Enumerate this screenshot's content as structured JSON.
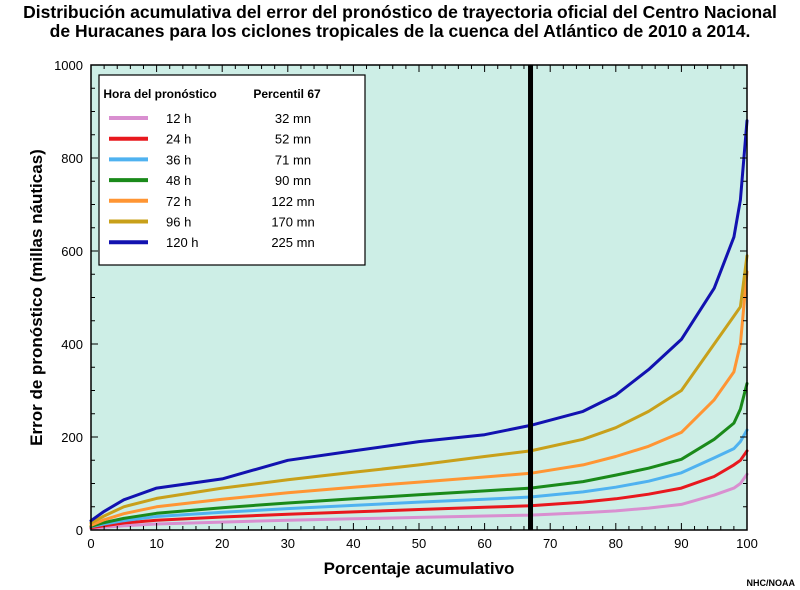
{
  "title": {
    "line1": "Distribución acumulativa del error del pronóstico de trayectoria oficial del Centro Nacional",
    "line2": "de Huracanes para los ciclones tropicales de la cuenca del Atlántico de 2010 a 2014."
  },
  "credit": "NHC/NOAA",
  "chart_data": {
    "type": "line",
    "xlabel": "Porcentaje acumulativo",
    "ylabel": "Error de pronóstico (millas náuticas)",
    "xlim": [
      0,
      100
    ],
    "ylim": [
      0,
      1000
    ],
    "xticks": [
      0,
      10,
      20,
      30,
      40,
      50,
      60,
      70,
      80,
      90,
      100
    ],
    "yticks": [
      0,
      200,
      400,
      600,
      800,
      1000
    ],
    "background": "#cdeee6",
    "grid": false,
    "reference_line_x": 67,
    "legend": {
      "placement": "top-left",
      "header_left": "Hora del pronóstico",
      "header_right": "Percentil 67"
    },
    "x": [
      0,
      2,
      5,
      10,
      20,
      30,
      40,
      50,
      60,
      67,
      75,
      80,
      85,
      90,
      95,
      98,
      99,
      100
    ],
    "series": [
      {
        "name": "12 h",
        "percentile67": "32 mn",
        "color": "#d98fd0",
        "values": [
          3,
          6,
          9,
          13,
          17,
          21,
          24,
          27,
          30,
          32,
          37,
          41,
          47,
          55,
          75,
          90,
          100,
          120
        ]
      },
      {
        "name": "24 h",
        "percentile67": "52 mn",
        "color": "#e8181e",
        "values": [
          5,
          9,
          15,
          21,
          28,
          34,
          39,
          44,
          49,
          52,
          60,
          67,
          77,
          90,
          115,
          140,
          150,
          170
        ]
      },
      {
        "name": "36 h",
        "percentile67": "71 mn",
        "color": "#4fb2f0",
        "values": [
          7,
          13,
          20,
          29,
          38,
          46,
          53,
          60,
          66,
          71,
          82,
          92,
          105,
          123,
          155,
          175,
          190,
          215
        ]
      },
      {
        "name": "48 h",
        "percentile67": "90 mn",
        "color": "#1a8a1a",
        "values": [
          8,
          16,
          25,
          36,
          48,
          58,
          67,
          76,
          84,
          90,
          104,
          118,
          133,
          152,
          195,
          230,
          260,
          315
        ]
      },
      {
        "name": "72 h",
        "percentile67": "122 mn",
        "color": "#ff9533",
        "values": [
          10,
          22,
          35,
          50,
          66,
          80,
          92,
          103,
          114,
          122,
          140,
          158,
          180,
          210,
          280,
          340,
          400,
          555
        ]
      },
      {
        "name": "96 h",
        "percentile67": "170 mn",
        "color": "#c8a01a",
        "values": [
          15,
          30,
          50,
          68,
          90,
          108,
          124,
          140,
          158,
          170,
          195,
          220,
          255,
          300,
          400,
          460,
          480,
          590
        ]
      },
      {
        "name": "120 h",
        "percentile67": "225 mn",
        "color": "#1212b0",
        "values": [
          20,
          40,
          65,
          90,
          110,
          150,
          170,
          190,
          205,
          225,
          255,
          290,
          345,
          410,
          520,
          630,
          710,
          880
        ]
      }
    ]
  }
}
